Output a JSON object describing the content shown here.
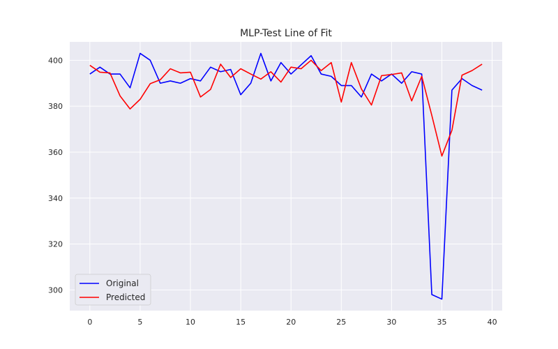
{
  "chart_data": {
    "type": "line",
    "title": "MLP-Test Line of Fit",
    "xlabel": "",
    "ylabel": "",
    "xlim": [
      -2,
      41
    ],
    "ylim": [
      291,
      408
    ],
    "xticks": [
      0,
      5,
      10,
      15,
      20,
      25,
      30,
      35,
      40
    ],
    "yticks": [
      300,
      320,
      340,
      360,
      380,
      400
    ],
    "grid": true,
    "legend_position": "lower-left",
    "background_color": "#eaeaf2",
    "series": [
      {
        "name": "Original",
        "color": "#0000ff",
        "x": [
          0,
          1,
          2,
          3,
          4,
          5,
          6,
          7,
          8,
          9,
          10,
          11,
          12,
          13,
          14,
          15,
          16,
          17,
          18,
          19,
          20,
          21,
          22,
          23,
          24,
          25,
          26,
          27,
          28,
          29,
          30,
          31,
          32,
          33,
          34,
          35,
          36,
          37,
          38,
          39
        ],
        "values": [
          394,
          397,
          394,
          394,
          388,
          403,
          400,
          390,
          391,
          390,
          392,
          391,
          397,
          395,
          396,
          385,
          390,
          403,
          391,
          399,
          394,
          398,
          402,
          394,
          393,
          389,
          389,
          384,
          394,
          391,
          394,
          390,
          395,
          394,
          298,
          296,
          387,
          392,
          389,
          387
        ]
      },
      {
        "name": "Predicted",
        "color": "#ff0000",
        "x": [
          0,
          1,
          2,
          3,
          4,
          5,
          6,
          7,
          8,
          9,
          10,
          11,
          12,
          13,
          14,
          15,
          16,
          17,
          18,
          19,
          20,
          21,
          22,
          23,
          24,
          25,
          26,
          27,
          28,
          29,
          30,
          31,
          32,
          33,
          34,
          35,
          36,
          37,
          38,
          39
        ],
        "values": [
          397.8,
          394.8,
          394.5,
          384.5,
          378.8,
          383,
          389.8,
          391.5,
          396.3,
          394.5,
          394.8,
          384,
          387.3,
          398.3,
          392.5,
          396.3,
          394,
          391.8,
          395,
          390.5,
          397,
          396.3,
          400,
          395.5,
          399,
          381.8,
          399,
          387.5,
          380.5,
          393.3,
          393.8,
          394.5,
          382.3,
          393,
          376,
          358.3,
          369.5,
          393.5,
          395.5,
          398.3
        ]
      }
    ]
  }
}
